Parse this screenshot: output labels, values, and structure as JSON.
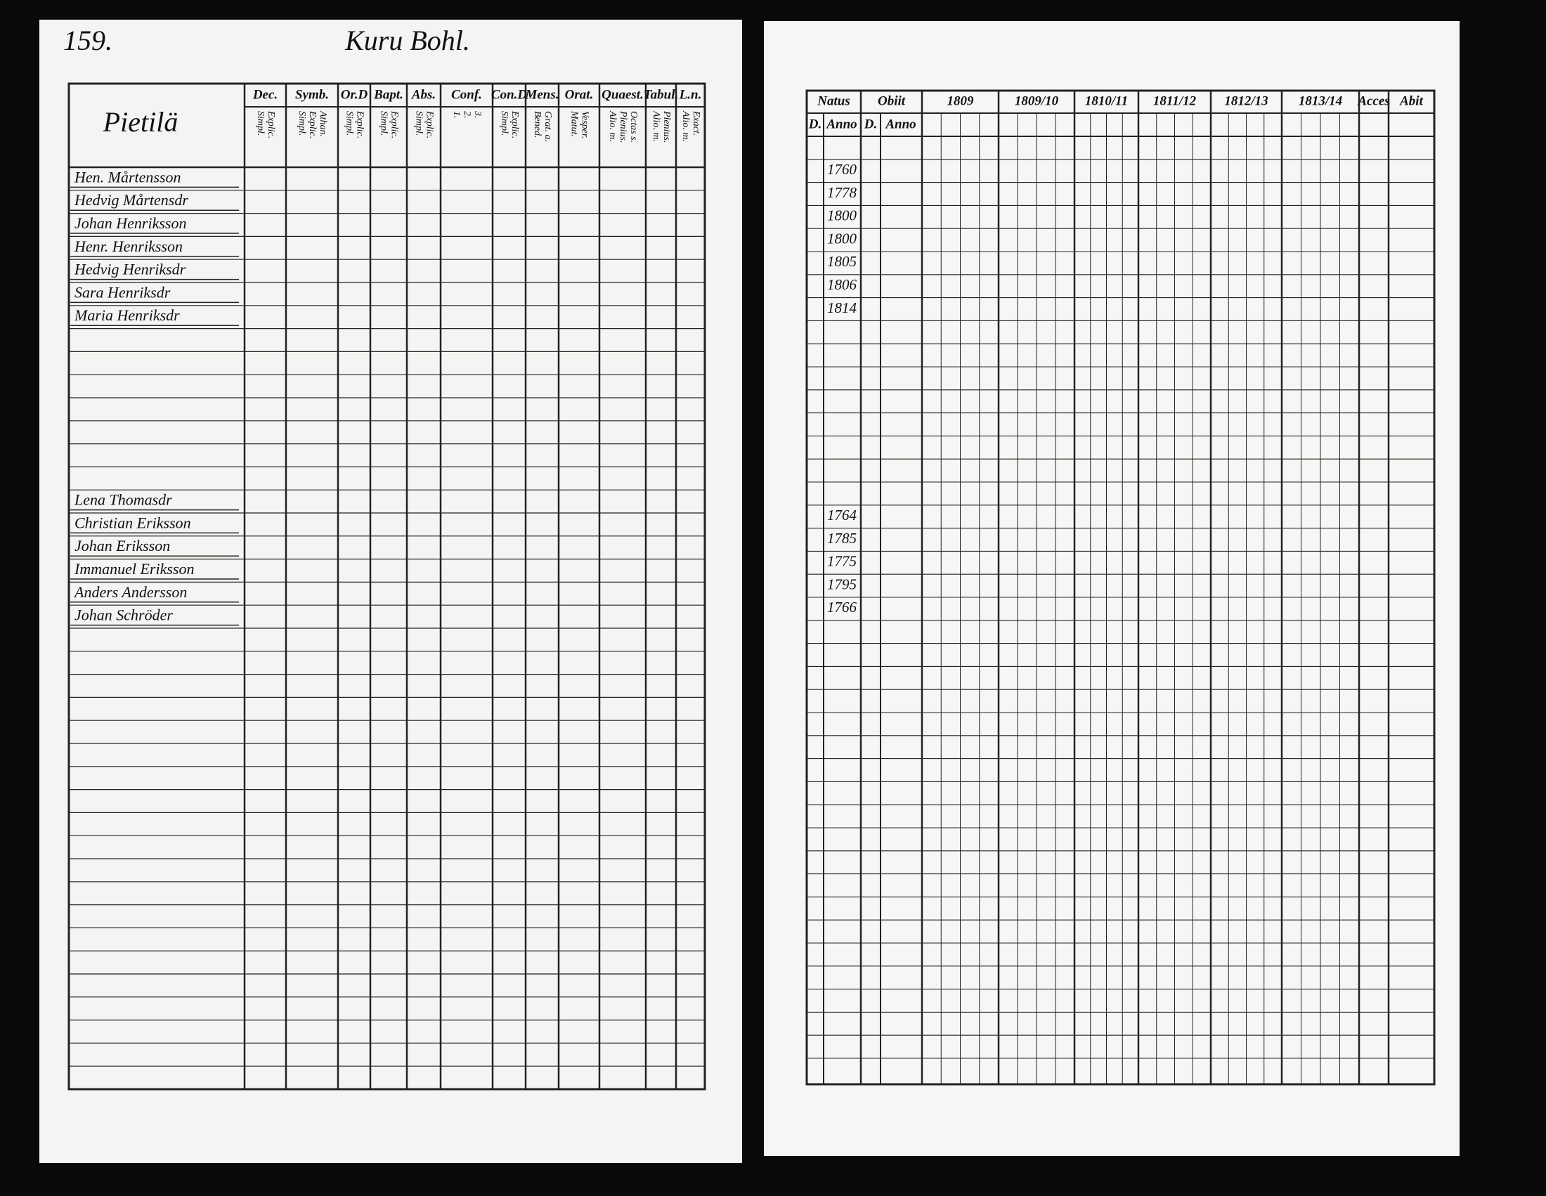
{
  "header": {
    "page_number": "159.",
    "village": "Kuru Bohl.",
    "farm": "Pietilä"
  },
  "left_table": {
    "columns": [
      {
        "label": "Dec.",
        "sub": [
          "Simpl.",
          "Explic."
        ]
      },
      {
        "label": "Symb.",
        "sub": [
          "Simpl.",
          "Explic.",
          "Athan."
        ]
      },
      {
        "label": "Or.D",
        "sub": [
          "Simpl.",
          "Explic."
        ]
      },
      {
        "label": "Bapt.",
        "sub": [
          "Simpl.",
          "Explic."
        ]
      },
      {
        "label": "Abs.",
        "sub": [
          "Simpl.",
          "Explic."
        ]
      },
      {
        "label": "Conf.",
        "sub": [
          "1.",
          "2.",
          "3."
        ]
      },
      {
        "label": "Con.D",
        "sub": [
          "Simpl.",
          "Explic."
        ]
      },
      {
        "label": "Mens.",
        "sub": [
          "Bened.",
          "Grat. a."
        ]
      },
      {
        "label": "Orat.",
        "sub": [
          "Matut.",
          "Vesper."
        ]
      },
      {
        "label": "Quaest.",
        "sub": [
          "Alio. m.",
          "Plenius.",
          "Octas s."
        ]
      },
      {
        "label": "Tabul.",
        "sub": [
          "Alio. m.",
          "Plenius."
        ]
      },
      {
        "label": "L.n.",
        "sub": [
          "Alio. m.",
          "Exact."
        ]
      }
    ],
    "groups": [
      [
        "Hen. Mårtensson",
        "Hedvig Mårtensdr",
        "Johan Henriksson",
        "Henr. Henriksson",
        "Hedvig Henriksdr",
        "Sara Henriksdr",
        "Maria Henriksdr"
      ],
      [
        "Lena Thomasdr",
        "Christian Eriksson",
        "Johan Eriksson",
        "Immanuel Eriksson",
        "Anders Andersson",
        "Johan Schröder"
      ]
    ]
  },
  "right_table": {
    "columns": [
      "Natus",
      "Obiit",
      "1809",
      "1809/10",
      "1810/11",
      "1811/12",
      "1812/13",
      "1813/14",
      "Acces",
      "Abit"
    ],
    "subcolumns": [
      "D.",
      "Anno",
      "D.",
      "Anno"
    ],
    "groups": [
      [
        "1760",
        "1778",
        "1800",
        "1800",
        "1805",
        "1806",
        "1814"
      ],
      [
        "1764",
        "1785",
        "1775",
        "1795",
        "1766"
      ]
    ]
  }
}
